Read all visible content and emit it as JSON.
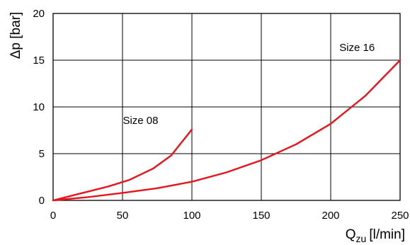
{
  "chart_data": {
    "type": "line",
    "xlabel": "Q",
    "xlabel_subscript": "zu",
    "xlabel_unit": "[l/min]",
    "ylabel": "Δp [bar]",
    "xlim": [
      0,
      250
    ],
    "ylim": [
      0,
      20
    ],
    "x_ticks": [
      0,
      50,
      100,
      150,
      200,
      250
    ],
    "y_ticks": [
      0,
      5,
      10,
      15,
      20
    ],
    "grid": true,
    "line_color": "#e8141b",
    "series": [
      {
        "x": [
          0,
          20,
          40,
          55,
          72,
          85,
          100
        ],
        "y": [
          0,
          0.75,
          1.5,
          2.2,
          3.4,
          4.8,
          7.6
        ]
      },
      {
        "x": [
          0,
          25,
          50,
          75,
          100,
          125,
          150,
          175,
          200,
          225,
          250
        ],
        "y": [
          0,
          0.35,
          0.8,
          1.3,
          2.0,
          3.0,
          4.3,
          6.0,
          8.2,
          11.2,
          15.0
        ]
      }
    ],
    "annotations": [
      {
        "text": "Size 08",
        "x": 63,
        "y": 8.2
      },
      {
        "text": "Size 16",
        "x": 219,
        "y": 16.0
      }
    ]
  }
}
